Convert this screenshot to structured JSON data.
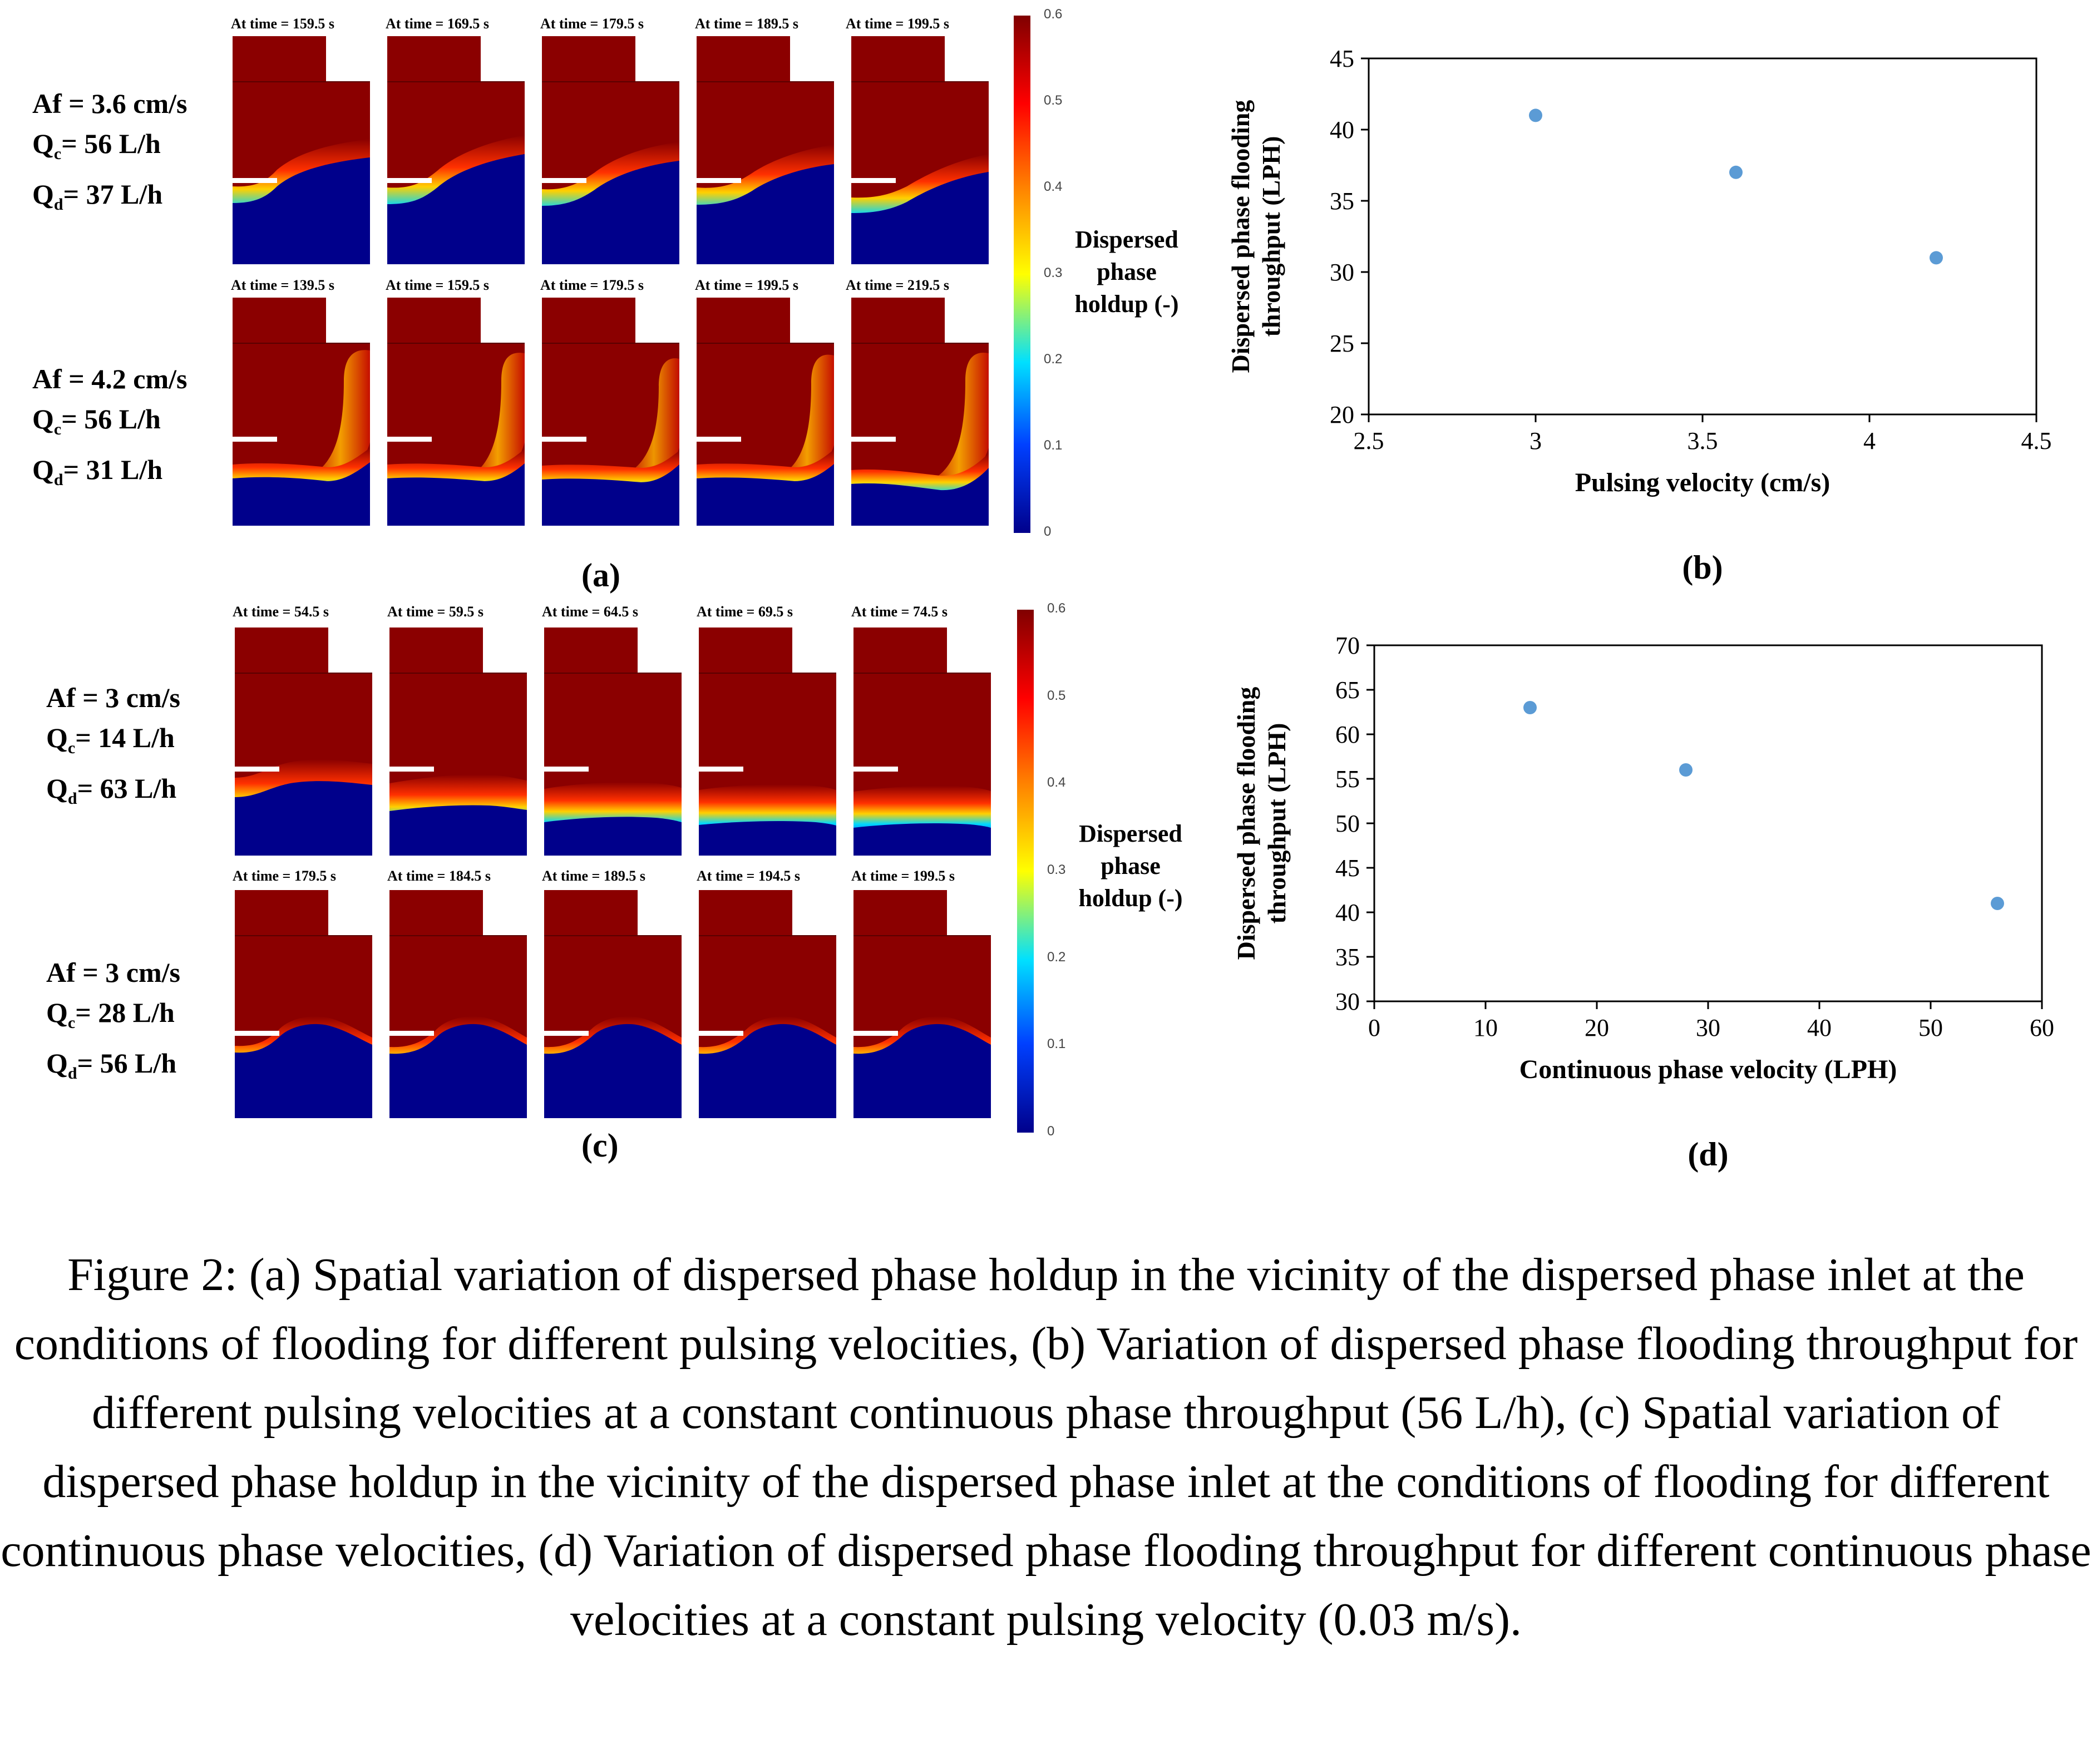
{
  "panel_a": {
    "label": "(a)",
    "rows": [
      {
        "af": "Af = 3.6 cm/s",
        "qc_pre": "Q",
        "qc_sub": "c",
        "qc_post": "= 56 L/h",
        "qd_pre": "Q",
        "qd_sub": "d",
        "qd_post": "= 37 L/h",
        "times": [
          "At time = 159.5 s",
          "At time = 169.5 s",
          "At time = 179.5 s",
          "At time = 189.5 s",
          "At time = 199.5 s"
        ]
      },
      {
        "af": "Af = 4.2 cm/s",
        "qc_pre": "Q",
        "qc_sub": "c",
        "qc_post": "= 56 L/h",
        "qd_pre": "Q",
        "qd_sub": "d",
        "qd_post": "= 31 L/h",
        "times": [
          "At time = 139.5 s",
          "At time = 159.5 s",
          "At time = 179.5 s",
          "At time = 199.5 s",
          "At time = 219.5 s"
        ]
      }
    ],
    "colorbar": {
      "ticks": [
        "0.6",
        "0.5",
        "0.4",
        "0.3",
        "0.2",
        "0.1",
        "0"
      ],
      "title": [
        "Dispersed",
        "phase",
        "holdup (-)"
      ]
    }
  },
  "panel_c": {
    "label": "(c)",
    "rows": [
      {
        "af": "Af = 3 cm/s",
        "qc_pre": "Q",
        "qc_sub": "c",
        "qc_post": "= 14 L/h",
        "qd_pre": "Q",
        "qd_sub": "d",
        "qd_post": "= 63 L/h",
        "times": [
          "At time = 54.5 s",
          "At time = 59.5 s",
          "At time = 64.5 s",
          "At time = 69.5 s",
          "At time = 74.5 s"
        ]
      },
      {
        "af": "Af = 3 cm/s",
        "qc_pre": "Q",
        "qc_sub": "c",
        "qc_post": "= 28 L/h",
        "qd_pre": "Q",
        "qd_sub": "d",
        "qd_post": "= 56 L/h",
        "times": [
          "At time = 179.5 s",
          "At time = 184.5 s",
          "At time = 189.5 s",
          "At time = 194.5 s",
          "At time = 199.5 s"
        ]
      }
    ],
    "colorbar": {
      "ticks": [
        "0.6",
        "0.5",
        "0.4",
        "0.3",
        "0.2",
        "0.1",
        "0"
      ],
      "title": [
        "Dispersed",
        "phase",
        "holdup (-)"
      ]
    }
  },
  "chart_data": [
    {
      "panel": "(b)",
      "type": "scatter",
      "x": [
        3.0,
        3.6,
        4.2
      ],
      "y": [
        41,
        37,
        31
      ],
      "xlabel": "Pulsing velocity (cm/s)",
      "ylabel": [
        "Dispersed phase flooding",
        "throughput (LPH)"
      ],
      "xlim": [
        2.5,
        4.5
      ],
      "ylim": [
        20,
        45
      ],
      "xticks": [
        2.5,
        3,
        3.5,
        4,
        4.5
      ],
      "xtick_labels": [
        "2.5",
        "3",
        "3.5",
        "4",
        "4.5"
      ],
      "yticks": [
        20,
        25,
        30,
        35,
        40,
        45
      ],
      "ytick_labels": [
        "20",
        "25",
        "30",
        "35",
        "40",
        "45"
      ],
      "color": "#5b9bd5",
      "grid": false
    },
    {
      "panel": "(d)",
      "type": "scatter",
      "x": [
        14,
        28,
        56
      ],
      "y": [
        63,
        56,
        41
      ],
      "xlabel": "Continuous phase velocity (LPH)",
      "ylabel": [
        "Dispersed phase flooding",
        "throughput (LPH)"
      ],
      "xlim": [
        0,
        60
      ],
      "ylim": [
        30,
        70
      ],
      "xticks": [
        0,
        10,
        20,
        30,
        40,
        50,
        60
      ],
      "xtick_labels": [
        "0",
        "10",
        "20",
        "30",
        "40",
        "50",
        "60"
      ],
      "yticks": [
        30,
        35,
        40,
        45,
        50,
        55,
        60,
        65,
        70
      ],
      "ytick_labels": [
        "30",
        "35",
        "40",
        "45",
        "50",
        "55",
        "60",
        "65",
        "70"
      ],
      "color": "#5b9bd5",
      "grid": false
    }
  ],
  "caption": "Figure 2: (a) Spatial variation of dispersed phase holdup in the vicinity of the dispersed phase inlet at the conditions of flooding for different pulsing velocities, (b) Variation of dispersed phase flooding throughput for different pulsing velocities at a constant continuous phase throughput (56 L/h), (c) Spatial variation of dispersed phase holdup in the vicinity of the dispersed phase inlet at the conditions of flooding for different continuous phase velocities, (d) Variation of dispersed phase flooding throughput for different continuous phase velocities at a constant pulsing velocity (0.03 m/s)."
}
